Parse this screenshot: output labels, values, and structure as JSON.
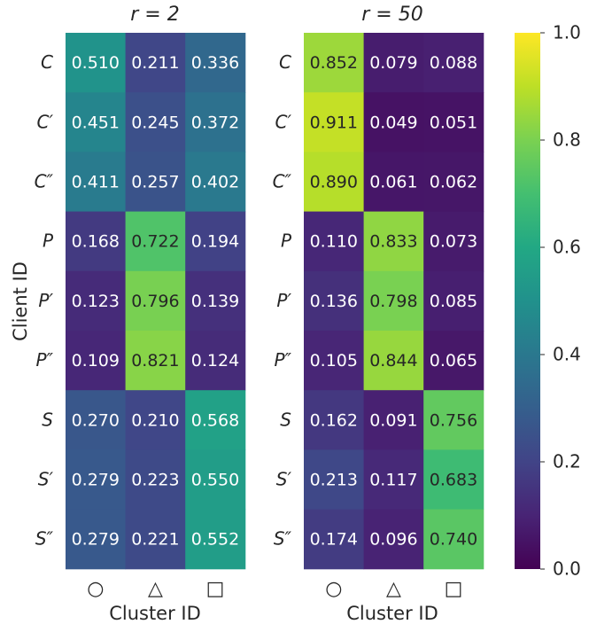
{
  "chart_data": {
    "type": "heatmap",
    "ylabel": "Client ID",
    "xlabel": "Cluster ID",
    "row_labels": [
      "C",
      "C′",
      "C″",
      "P",
      "P′",
      "P″",
      "S",
      "S′",
      "S″"
    ],
    "col_labels": [
      "○",
      "△",
      "□"
    ],
    "value_range": [
      0.0,
      1.0
    ],
    "colormap": "viridis",
    "panels": [
      {
        "title": "r = 2",
        "values": [
          [
            0.51,
            0.211,
            0.336
          ],
          [
            0.451,
            0.245,
            0.372
          ],
          [
            0.411,
            0.257,
            0.402
          ],
          [
            0.168,
            0.722,
            0.194
          ],
          [
            0.123,
            0.796,
            0.139
          ],
          [
            0.109,
            0.821,
            0.124
          ],
          [
            0.27,
            0.21,
            0.568
          ],
          [
            0.279,
            0.223,
            0.55
          ],
          [
            0.279,
            0.221,
            0.552
          ]
        ]
      },
      {
        "title": "r = 50",
        "values": [
          [
            0.852,
            0.079,
            0.088
          ],
          [
            0.911,
            0.049,
            0.051
          ],
          [
            0.89,
            0.061,
            0.062
          ],
          [
            0.11,
            0.833,
            0.073
          ],
          [
            0.136,
            0.798,
            0.085
          ],
          [
            0.105,
            0.844,
            0.065
          ],
          [
            0.162,
            0.091,
            0.756
          ],
          [
            0.213,
            0.117,
            0.683
          ],
          [
            0.174,
            0.096,
            0.74
          ]
        ]
      }
    ],
    "colorbar": {
      "ticks": [
        "0.0",
        "0.2",
        "0.4",
        "0.6",
        "0.8",
        "1.0"
      ],
      "tick_values": [
        0.0,
        0.2,
        0.4,
        0.6,
        0.8,
        1.0
      ]
    }
  }
}
